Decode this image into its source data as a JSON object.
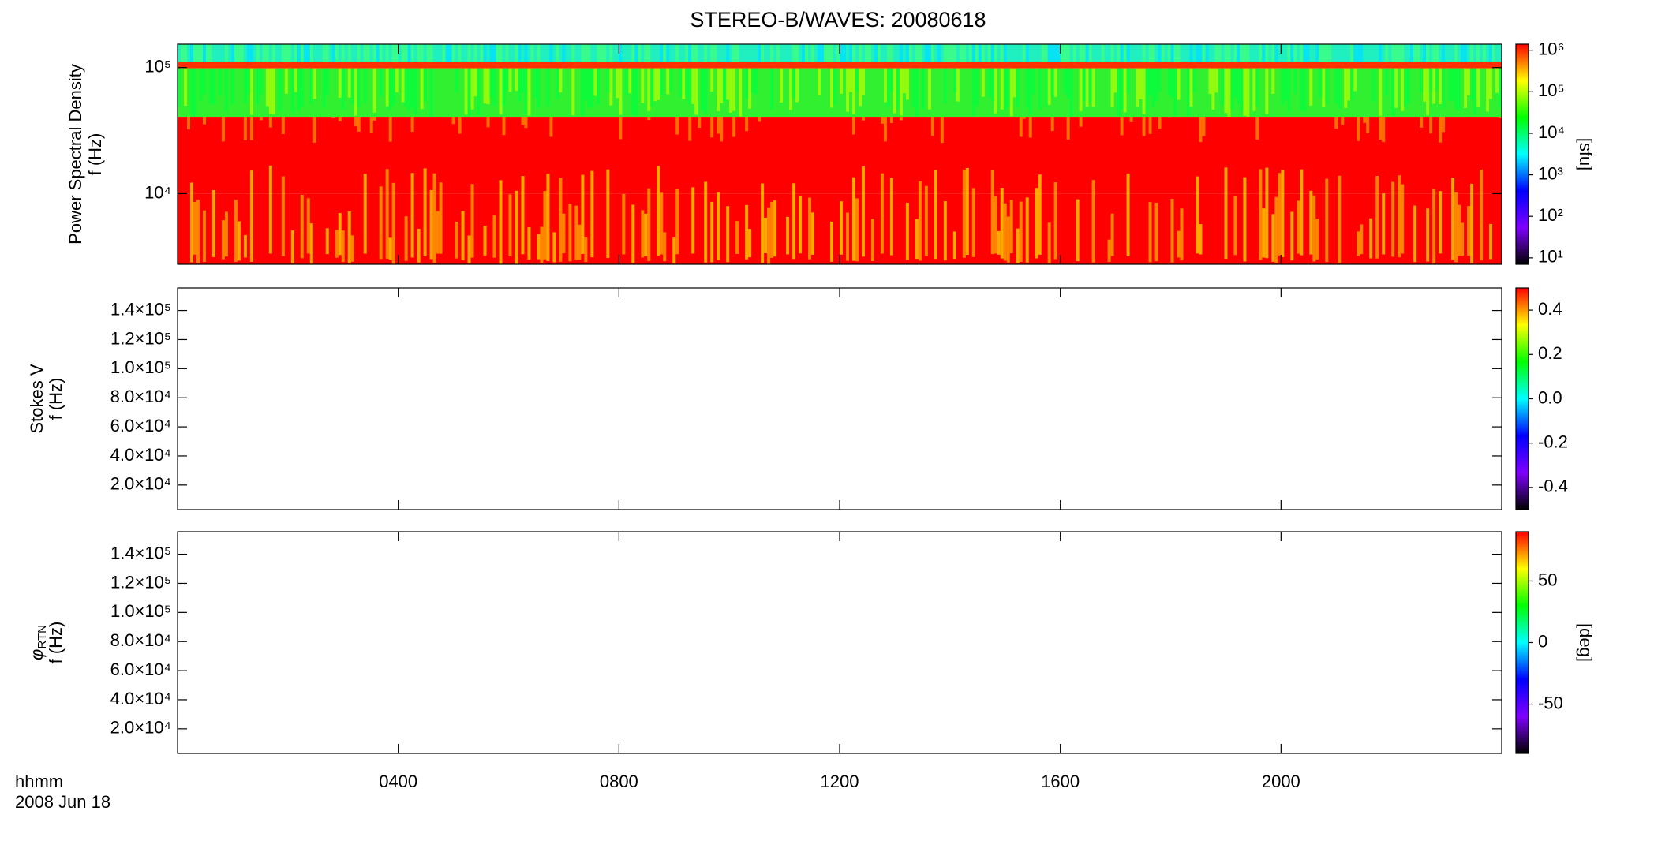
{
  "chart_data": [
    {
      "type": "heatmap",
      "title": "STEREO-B/WAVES: 20080618",
      "ylabel": "Power Spectral Density",
      "ylabel2": "f (Hz)",
      "yscale": "log",
      "ylim": [
        2750,
        153500
      ],
      "yticks": [
        {
          "value": 10000,
          "label": "10⁴"
        },
        {
          "value": 100000,
          "label": "10⁵"
        }
      ],
      "xlim": [
        0,
        24
      ],
      "xticks": [
        4,
        8,
        12,
        16,
        20
      ],
      "colorscale": [
        "#000000",
        "#7f00ff",
        "#0000ff",
        "#00ffff",
        "#00ff00",
        "#ffff00",
        "#ff0000"
      ],
      "colorbar": {
        "scale": "log",
        "lim": [
          7,
          1400000
        ],
        "label": "[sfu]",
        "ticks": [
          {
            "value": 10,
            "label": "10¹"
          },
          {
            "value": 100,
            "label": "10²"
          },
          {
            "value": 1000,
            "label": "10³"
          },
          {
            "value": 10000,
            "label": "10⁴"
          },
          {
            "value": 100000,
            "label": "10⁵"
          },
          {
            "value": 1000000,
            "label": "10⁶"
          }
        ]
      }
    },
    {
      "type": "heatmap",
      "ylabel": "Stokes V",
      "ylabel2": "f (Hz)",
      "yscale": "linear",
      "ylim": [
        3100,
        155500
      ],
      "yticks": [
        {
          "value": 20000,
          "label": "2.0×10⁴"
        },
        {
          "value": 40000,
          "label": "4.0×10⁴"
        },
        {
          "value": 60000,
          "label": "6.0×10⁴"
        },
        {
          "value": 80000,
          "label": "8.0×10⁴"
        },
        {
          "value": 100000,
          "label": "1.0×10⁵"
        },
        {
          "value": 120000,
          "label": "1.2×10⁵"
        },
        {
          "value": 140000,
          "label": "1.4×10⁵"
        }
      ],
      "xlim": [
        0,
        24
      ],
      "xticks": [
        4,
        8,
        12,
        16,
        20
      ],
      "colorscale": [
        "#000000",
        "#7f00ff",
        "#0000ff",
        "#00ffff",
        "#00ff00",
        "#ffff00",
        "#ff0000"
      ],
      "colorbar": {
        "scale": "linear",
        "lim": [
          -0.5,
          0.5
        ],
        "ticks": [
          -0.4,
          -0.2,
          {
            "value": 0,
            "label": "0.0"
          },
          0.2,
          0.4
        ]
      }
    },
    {
      "type": "heatmap",
      "ylabel_symbol": "φ",
      "ylabel_subscript": "RTN",
      "ylabel2": "f (Hz)",
      "yscale": "linear",
      "ylim": [
        3100,
        155500
      ],
      "yticks": [
        {
          "value": 20000,
          "label": "2.0×10⁴"
        },
        {
          "value": 40000,
          "label": "4.0×10⁴"
        },
        {
          "value": 60000,
          "label": "6.0×10⁴"
        },
        {
          "value": 80000,
          "label": "8.0×10⁴"
        },
        {
          "value": 100000,
          "label": "1.0×10⁵"
        },
        {
          "value": 120000,
          "label": "1.2×10⁵"
        },
        {
          "value": 140000,
          "label": "1.4×10⁵"
        }
      ],
      "xlim": [
        0,
        24
      ],
      "xticks": [
        {
          "value": 4,
          "label": "0400"
        },
        {
          "value": 8,
          "label": "0800"
        },
        {
          "value": 12,
          "label": "1200"
        },
        {
          "value": 16,
          "label": "1600"
        },
        {
          "value": 20,
          "label": "2000"
        }
      ],
      "xlabel": "hhmm",
      "date_label": "2008 Jun 18",
      "colorscale": [
        "#000000",
        "#7f00ff",
        "#0000ff",
        "#00ffff",
        "#00ff00",
        "#ffff00",
        "#ff0000"
      ],
      "colorbar": {
        "scale": "linear",
        "lim": [
          -90,
          90
        ],
        "label": "[deg]",
        "ticks": [
          -50,
          0,
          50
        ]
      }
    }
  ]
}
